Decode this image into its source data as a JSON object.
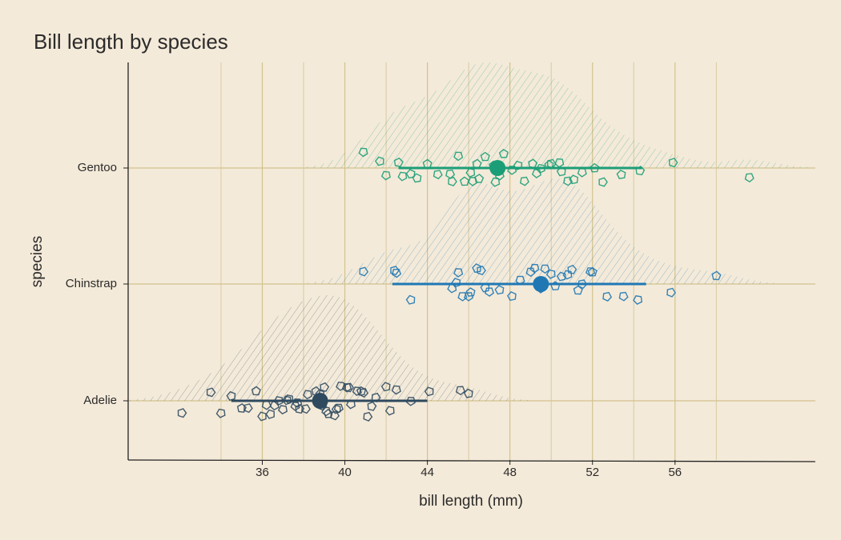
{
  "chart_data": {
    "type": "raincloud",
    "title": "Bill length by species",
    "x_label": "bill length (mm)",
    "y_label": "species",
    "xlim": [
      29.5,
      62.8
    ],
    "xticks": [
      36,
      40,
      44,
      48,
      52,
      56
    ],
    "x_minor_grid": [
      34,
      38,
      42,
      46,
      50,
      54,
      58
    ],
    "grid": true,
    "series": [
      {
        "name": "Gentoo",
        "color": "#1b9e77",
        "mean": 47.4,
        "interval": [
          42.6,
          54.4
        ],
        "values": [
          40.9,
          41.7,
          42.0,
          42.6,
          42.8,
          43.2,
          43.5,
          44.0,
          44.5,
          45.1,
          45.2,
          45.5,
          45.8,
          46.1,
          46.2,
          46.4,
          46.5,
          46.8,
          47.2,
          47.3,
          47.5,
          47.7,
          48.1,
          48.4,
          48.7,
          49.1,
          49.3,
          49.5,
          49.9,
          50.0,
          50.4,
          50.5,
          50.8,
          51.1,
          51.5,
          52.1,
          52.5,
          53.4,
          54.3,
          55.9,
          59.6
        ]
      },
      {
        "name": "Chinstrap",
        "color": "#1f78b4",
        "mean": 49.5,
        "interval": [
          42.3,
          54.6
        ],
        "values": [
          40.9,
          42.4,
          42.5,
          43.2,
          45.2,
          45.4,
          45.5,
          45.7,
          46.0,
          46.1,
          46.4,
          46.6,
          46.8,
          47.0,
          47.5,
          48.1,
          48.5,
          49.0,
          49.2,
          49.5,
          49.7,
          50.0,
          50.2,
          50.5,
          50.8,
          51.0,
          51.3,
          51.5,
          51.9,
          52.0,
          52.7,
          53.5,
          54.2,
          55.8,
          58.0
        ]
      },
      {
        "name": "Adelie",
        "color": "#2f4a5f",
        "mean": 38.8,
        "interval": [
          34.5,
          44.0
        ],
        "values": [
          32.1,
          33.5,
          34.0,
          34.5,
          35.0,
          35.3,
          35.7,
          36.0,
          36.2,
          36.4,
          36.6,
          36.8,
          37.0,
          37.2,
          37.3,
          37.6,
          37.7,
          37.8,
          38.1,
          38.2,
          38.6,
          38.8,
          38.9,
          39.0,
          39.1,
          39.2,
          39.5,
          39.6,
          39.7,
          39.8,
          40.1,
          40.2,
          40.3,
          40.6,
          40.8,
          40.9,
          41.1,
          41.3,
          41.5,
          42.0,
          42.2,
          42.5,
          43.2,
          44.1,
          45.6,
          46.0
        ]
      }
    ]
  }
}
